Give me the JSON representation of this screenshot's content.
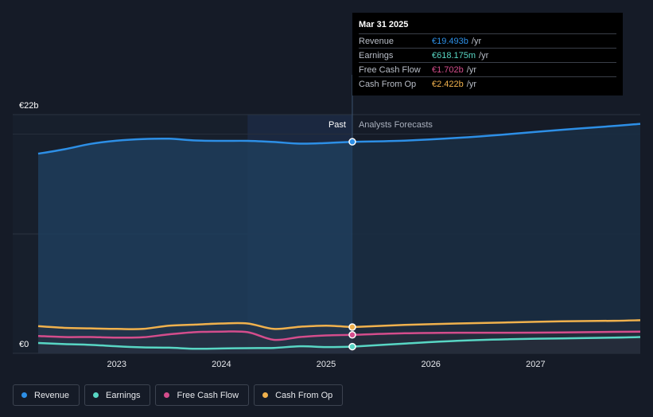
{
  "chart_data": {
    "type": "area",
    "y_axis": {
      "top_label": "€22b",
      "bottom_label": "€0",
      "ylim": [
        0,
        22
      ]
    },
    "x_ticks": [
      {
        "label": "2023",
        "x": 2023.0
      },
      {
        "label": "2024",
        "x": 2024.0
      },
      {
        "label": "2025",
        "x": 2025.0
      },
      {
        "label": "2026",
        "x": 2026.0
      },
      {
        "label": "2027",
        "x": 2027.0
      }
    ],
    "xlim": [
      2022.0,
      2028.0
    ],
    "divider": {
      "x": 2025.25,
      "past_label": "Past",
      "forecast_label": "Analysts Forecasts"
    },
    "series": [
      {
        "name": "Revenue",
        "color": "#2d8fe6",
        "past": [
          [
            2022.25,
            18.4
          ],
          [
            2022.5,
            18.8
          ],
          [
            2022.75,
            19.3
          ],
          [
            2023.0,
            19.6
          ],
          [
            2023.25,
            19.75
          ],
          [
            2023.5,
            19.78
          ],
          [
            2023.75,
            19.62
          ],
          [
            2024.0,
            19.58
          ],
          [
            2024.25,
            19.58
          ],
          [
            2024.5,
            19.48
          ],
          [
            2024.75,
            19.32
          ],
          [
            2025.0,
            19.38
          ],
          [
            2025.25,
            19.493
          ]
        ],
        "forecast": [
          [
            2025.25,
            19.493
          ],
          [
            2025.75,
            19.6
          ],
          [
            2026.25,
            19.85
          ],
          [
            2026.75,
            20.2
          ],
          [
            2027.25,
            20.6
          ],
          [
            2027.75,
            20.95
          ],
          [
            2028.0,
            21.15
          ]
        ]
      },
      {
        "name": "Earnings",
        "color": "#58d6c4",
        "past": [
          [
            2022.25,
            0.95
          ],
          [
            2022.5,
            0.85
          ],
          [
            2022.75,
            0.78
          ],
          [
            2023.0,
            0.65
          ],
          [
            2023.25,
            0.55
          ],
          [
            2023.5,
            0.52
          ],
          [
            2023.75,
            0.42
          ],
          [
            2024.0,
            0.45
          ],
          [
            2024.25,
            0.48
          ],
          [
            2024.5,
            0.5
          ],
          [
            2024.75,
            0.65
          ],
          [
            2025.0,
            0.58
          ],
          [
            2025.25,
            0.618
          ]
        ],
        "forecast": [
          [
            2025.25,
            0.618
          ],
          [
            2025.75,
            0.9
          ],
          [
            2026.25,
            1.15
          ],
          [
            2026.75,
            1.3
          ],
          [
            2027.25,
            1.38
          ],
          [
            2027.75,
            1.45
          ],
          [
            2028.0,
            1.5
          ]
        ]
      },
      {
        "name": "Free Cash Flow",
        "color": "#d44d8c",
        "past": [
          [
            2022.25,
            1.6
          ],
          [
            2022.5,
            1.5
          ],
          [
            2022.75,
            1.5
          ],
          [
            2023.0,
            1.45
          ],
          [
            2023.25,
            1.48
          ],
          [
            2023.5,
            1.75
          ],
          [
            2023.75,
            1.95
          ],
          [
            2024.0,
            2.0
          ],
          [
            2024.25,
            1.95
          ],
          [
            2024.5,
            1.25
          ],
          [
            2024.75,
            1.5
          ],
          [
            2025.0,
            1.65
          ],
          [
            2025.25,
            1.702
          ]
        ],
        "forecast": [
          [
            2025.25,
            1.702
          ],
          [
            2025.75,
            1.85
          ],
          [
            2026.25,
            1.9
          ],
          [
            2026.75,
            1.9
          ],
          [
            2027.25,
            1.92
          ],
          [
            2027.75,
            1.98
          ],
          [
            2028.0,
            2.0
          ]
        ]
      },
      {
        "name": "Cash From Op",
        "color": "#f0b14d",
        "past": [
          [
            2022.25,
            2.5
          ],
          [
            2022.5,
            2.35
          ],
          [
            2022.75,
            2.3
          ],
          [
            2023.0,
            2.25
          ],
          [
            2023.25,
            2.25
          ],
          [
            2023.5,
            2.55
          ],
          [
            2023.75,
            2.65
          ],
          [
            2024.0,
            2.75
          ],
          [
            2024.25,
            2.75
          ],
          [
            2024.5,
            2.25
          ],
          [
            2024.75,
            2.45
          ],
          [
            2025.0,
            2.55
          ],
          [
            2025.25,
            2.422
          ]
        ],
        "forecast": [
          [
            2025.25,
            2.422
          ],
          [
            2025.75,
            2.62
          ],
          [
            2026.25,
            2.75
          ],
          [
            2026.75,
            2.85
          ],
          [
            2027.25,
            2.95
          ],
          [
            2027.75,
            3.0
          ],
          [
            2028.0,
            3.05
          ]
        ]
      }
    ]
  },
  "tooltip": {
    "date": "Mar 31 2025",
    "rows": [
      {
        "label": "Revenue",
        "value": "€19.493b",
        "unit": "/yr",
        "color": "#2d8fe6"
      },
      {
        "label": "Earnings",
        "value": "€618.175m",
        "unit": "/yr",
        "color": "#58d6c4"
      },
      {
        "label": "Free Cash Flow",
        "value": "€1.702b",
        "unit": "/yr",
        "color": "#d44d8c"
      },
      {
        "label": "Cash From Op",
        "value": "€2.422b",
        "unit": "/yr",
        "color": "#f0b14d"
      }
    ]
  },
  "legend": [
    {
      "label": "Revenue",
      "color": "#2d8fe6"
    },
    {
      "label": "Earnings",
      "color": "#58d6c4"
    },
    {
      "label": "Free Cash Flow",
      "color": "#d44d8c"
    },
    {
      "label": "Cash From Op",
      "color": "#f0b14d"
    }
  ]
}
